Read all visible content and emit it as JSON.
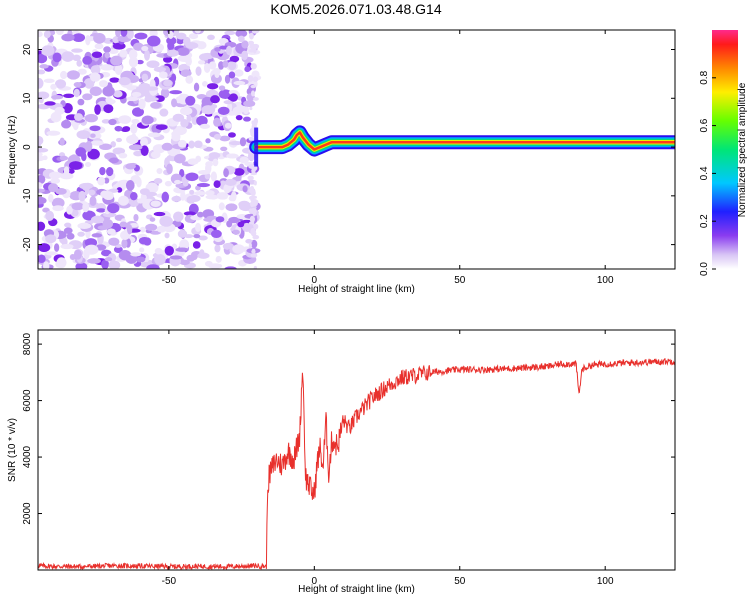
{
  "title": "KOM5.2026.071.03.48.G14",
  "chart_data": [
    {
      "type": "heatmap",
      "panel": "spectrogram",
      "xlabel": "Height of straight line (km)",
      "ylabel": "Frequency (Hz)",
      "xlim": [
        -95,
        124
      ],
      "ylim": [
        -25,
        24
      ],
      "x_ticks": [
        -50,
        0,
        50,
        100
      ],
      "y_ticks": [
        20,
        10,
        0,
        -10,
        -20
      ],
      "noise_region_x": [
        -95,
        -20
      ],
      "signal_ridge": {
        "x": [
          -20,
          -17,
          -14,
          -11,
          -9,
          -7,
          -6,
          -5,
          -4,
          -2,
          0,
          2,
          4,
          6,
          8,
          10,
          20,
          30,
          40,
          60,
          80,
          100,
          124
        ],
        "freq": [
          0,
          0,
          0,
          0,
          0.5,
          1.5,
          2.5,
          3,
          2,
          0.5,
          -0.5,
          0,
          0.5,
          1,
          1,
          1,
          1,
          1,
          1,
          1,
          1,
          1,
          1
        ]
      },
      "colorbar": {
        "label": "Normalized spectral amplitude",
        "range": [
          0,
          1
        ],
        "ticks": [
          "0.0",
          "0.2",
          "0.4",
          "0.6",
          "0.8"
        ]
      }
    },
    {
      "type": "line",
      "panel": "snr",
      "xlabel": "Height of straight line (km)",
      "ylabel": "SNR (10 * v/v)",
      "xlim": [
        -95,
        124
      ],
      "ylim": [
        0,
        8500
      ],
      "x_ticks": [
        -50,
        0,
        50,
        100
      ],
      "y_ticks": [
        2000,
        4000,
        6000,
        8000
      ],
      "series": [
        {
          "name": "SNR",
          "color": "#e8302c",
          "x": [
            -95,
            -90,
            -80,
            -70,
            -60,
            -50,
            -40,
            -30,
            -20,
            -16.5,
            -16,
            -15,
            -13,
            -11,
            -9,
            -7,
            -5,
            -4,
            -3,
            -1,
            0,
            1,
            2,
            3,
            4,
            5,
            6,
            8,
            10,
            12,
            15,
            20,
            25,
            30,
            35,
            40,
            50,
            60,
            70,
            80,
            85,
            90,
            91,
            92,
            95,
            100,
            110,
            124
          ],
          "values": [
            150,
            130,
            120,
            150,
            140,
            120,
            130,
            120,
            150,
            130,
            3100,
            3500,
            3900,
            3700,
            4200,
            3900,
            4800,
            7300,
            3300,
            2800,
            2700,
            3800,
            4300,
            3600,
            5300,
            3400,
            4600,
            4400,
            5300,
            5000,
            5500,
            6100,
            6500,
            6800,
            6900,
            7000,
            7100,
            7100,
            7150,
            7200,
            7300,
            7300,
            6200,
            7100,
            7250,
            7300,
            7350,
            7400
          ]
        }
      ]
    }
  ]
}
